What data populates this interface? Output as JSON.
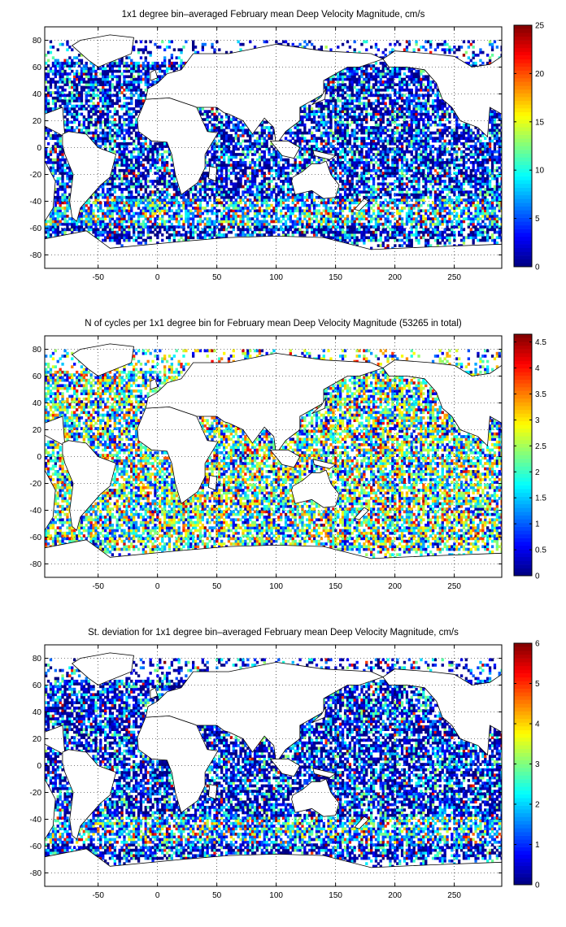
{
  "colormap": "jet",
  "chart_data": [
    {
      "type": "heatmap",
      "title": "1x1 degree bin–averaged February mean Deep Velocity Magnitude, cm/s",
      "xlabel": "",
      "ylabel": "",
      "xlim": [
        -95,
        290
      ],
      "ylim": [
        -90,
        90
      ],
      "xticks": [
        -50,
        0,
        50,
        100,
        150,
        200,
        250
      ],
      "yticks": [
        -80,
        -60,
        -40,
        -20,
        0,
        20,
        40,
        60,
        80
      ],
      "grid": true,
      "colorbar": {
        "min": 0,
        "max": 25,
        "ticks": [
          0,
          5,
          10,
          15,
          20,
          25
        ],
        "tick_labels": [
          "0",
          "5",
          "10",
          "15",
          "20",
          "25"
        ]
      }
    },
    {
      "type": "heatmap",
      "title": "N of cycles per 1x1 degree bin for February mean Deep Velocity Magnitude (53265 in total)",
      "total_cycles": 53265,
      "xlabel": "",
      "ylabel": "",
      "xlim": [
        -95,
        290
      ],
      "ylim": [
        -90,
        90
      ],
      "xticks": [
        -50,
        0,
        50,
        100,
        150,
        200,
        250
      ],
      "yticks": [
        -80,
        -60,
        -40,
        -20,
        0,
        20,
        40,
        60,
        80
      ],
      "grid": true,
      "colorbar": {
        "min": 0,
        "max": 4.65,
        "ticks": [
          0,
          0.5,
          1,
          1.5,
          2,
          2.5,
          3,
          3.5,
          4,
          4.5
        ],
        "tick_labels": [
          "0",
          "0.5",
          "1",
          "1.5",
          "2",
          "2.5",
          "3",
          "3.5",
          "4",
          "4.5"
        ]
      }
    },
    {
      "type": "heatmap",
      "title": "St. deviation for 1x1 degree bin–averaged February mean Deep Velocity Magnitude, cm/s",
      "xlabel": "",
      "ylabel": "",
      "xlim": [
        -95,
        290
      ],
      "ylim": [
        -90,
        90
      ],
      "xticks": [
        -50,
        0,
        50,
        100,
        150,
        200,
        250
      ],
      "yticks": [
        -80,
        -60,
        -40,
        -20,
        0,
        20,
        40,
        60,
        80
      ],
      "grid": true,
      "colorbar": {
        "min": 0,
        "max": 6,
        "ticks": [
          0,
          1,
          2,
          3,
          4,
          5,
          6
        ],
        "tick_labels": [
          "0",
          "1",
          "2",
          "3",
          "4",
          "5",
          "6"
        ]
      }
    }
  ]
}
